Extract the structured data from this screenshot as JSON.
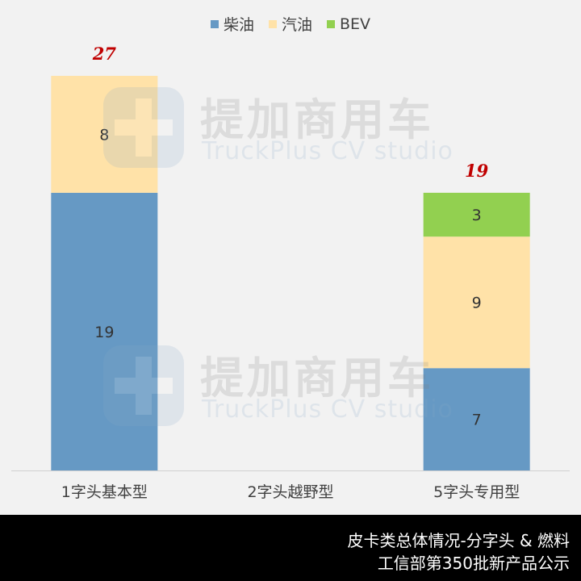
{
  "chart_data": {
    "type": "bar",
    "stacked": true,
    "categories": [
      "1字头基本型",
      "2字头越野型",
      "5字头专用型"
    ],
    "series": [
      {
        "name": "柴油",
        "color": "#6699c4",
        "values": [
          19,
          0,
          7
        ]
      },
      {
        "name": "汽油",
        "color": "#ffe2a8",
        "values": [
          8,
          0,
          9
        ]
      },
      {
        "name": "BEV",
        "color": "#92d050",
        "values": [
          0,
          0,
          3
        ]
      }
    ],
    "totals": [
      27,
      null,
      19
    ],
    "total_label_color": "#c00000",
    "ylim": [
      0,
      27
    ],
    "grid": false,
    "legend_position": "top"
  },
  "watermark": {
    "title": "提加商用车",
    "subtitle": "TruckPlus CV studio"
  },
  "footer": {
    "line1": "皮卡类总体情况-分字头 & 燃料",
    "line2": "工信部第350批新产品公示"
  }
}
